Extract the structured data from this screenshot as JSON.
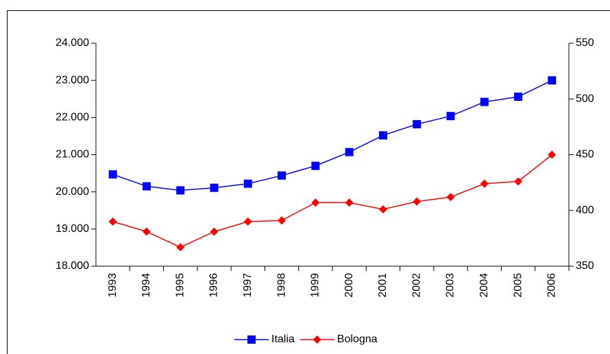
{
  "chart_data": {
    "type": "line",
    "categories": [
      "1993",
      "1994",
      "1995",
      "1996",
      "1997",
      "1998",
      "1999",
      "2000",
      "2001",
      "2002",
      "2003",
      "2004",
      "2005",
      "2006"
    ],
    "series": [
      {
        "name": "Italia",
        "color": "#0000ff",
        "marker": "square",
        "values": [
          20470,
          20150,
          20040,
          20110,
          20220,
          20440,
          20700,
          21070,
          21520,
          21820,
          22040,
          22420,
          22560,
          23000
        ]
      },
      {
        "name": "Bologna",
        "color": "#ff0000",
        "marker": "diamond",
        "axis": "y2",
        "values": [
          390,
          381,
          367,
          381,
          390,
          391,
          407,
          407,
          401,
          408,
          412,
          424,
          426,
          450
        ]
      }
    ],
    "ylim": [
      18000,
      24000
    ],
    "yticks": [
      {
        "value": 18000,
        "label": "18.000"
      },
      {
        "value": 19000,
        "label": "19.000"
      },
      {
        "value": 20000,
        "label": "20.000"
      },
      {
        "value": 21000,
        "label": "21.000"
      },
      {
        "value": 22000,
        "label": "22.000"
      },
      {
        "value": 23000,
        "label": "23.000"
      },
      {
        "value": 24000,
        "label": "24.000"
      }
    ],
    "y2lim": [
      350,
      550
    ],
    "y2ticks": [
      350,
      400,
      450,
      500,
      550
    ],
    "grid": false,
    "legend": "bottom"
  }
}
